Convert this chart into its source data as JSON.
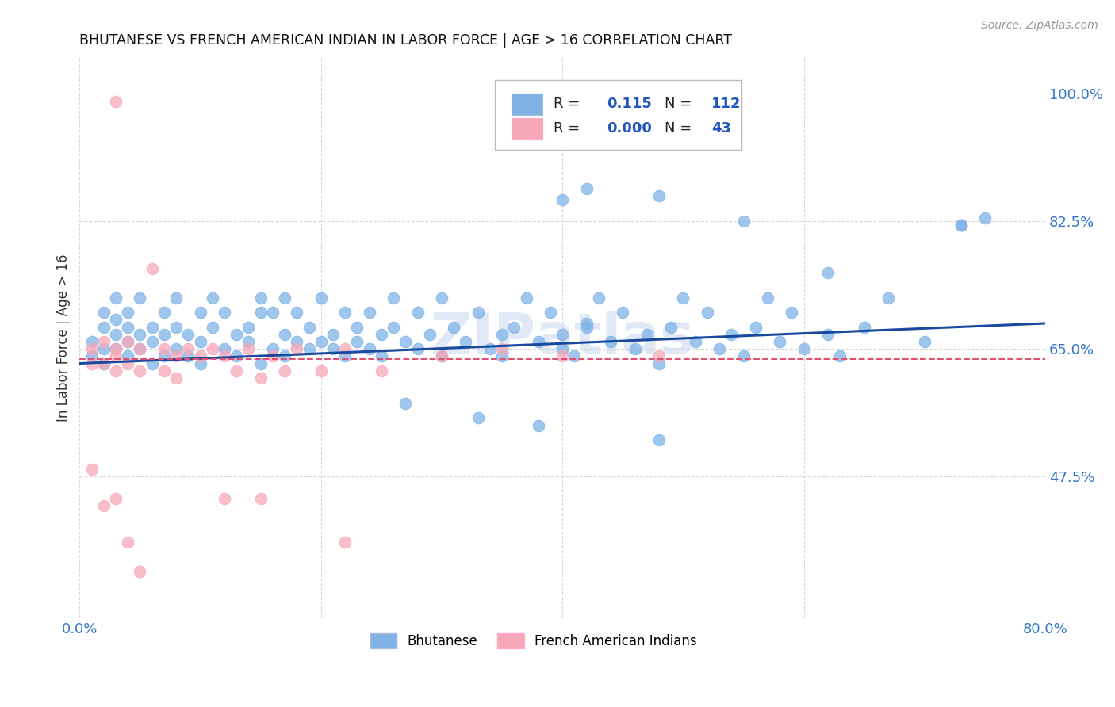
{
  "title": "BHUTANESE VS FRENCH AMERICAN INDIAN IN LABOR FORCE | AGE > 16 CORRELATION CHART",
  "source": "Source: ZipAtlas.com",
  "ylabel": "In Labor Force | Age > 16",
  "xlim": [
    0.0,
    0.8
  ],
  "ylim": [
    0.28,
    1.05
  ],
  "ytick_positions": [
    0.475,
    0.65,
    0.825,
    1.0
  ],
  "ytick_labels": [
    "47.5%",
    "65.0%",
    "82.5%",
    "100.0%"
  ],
  "grid_color": "#d8d8d8",
  "background_color": "#ffffff",
  "blue_color": "#7fb3e8",
  "pink_color": "#f7a8b8",
  "blue_line_color": "#1a4a9e",
  "pink_line_color": "#e05070",
  "R_blue": 0.115,
  "N_blue": 112,
  "R_pink": 0.0,
  "N_pink": 43,
  "legend_label_blue": "Bhutanese",
  "legend_label_pink": "French American Indians",
  "blue_trend_start_y": 0.63,
  "blue_trend_end_y": 0.685,
  "pink_trend_y": 0.636
}
